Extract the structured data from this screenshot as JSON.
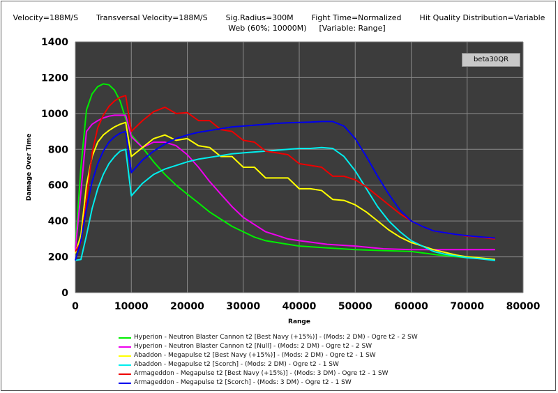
{
  "header": {
    "velocity": "Velocity=188M/S",
    "transversal_velocity": "Transversal Velocity=188M/S",
    "sig_radius": "Sig.Radius=300M",
    "fight_time": "Fight Time=Normalized",
    "hit_quality": "Hit Quality Distribution=Variable",
    "web": "Web (60%; 10000M)",
    "variable": "[Variable: Range]"
  },
  "badge": "beta30QR",
  "colors": {
    "plot_bg": "#3c3c3c",
    "grid": "#8a8a8a"
  },
  "chart_data": {
    "type": "line",
    "title": "",
    "xlabel": "Range",
    "ylabel": "Damage Over Time",
    "xlim": [
      0,
      80000
    ],
    "ylim": [
      0,
      1400
    ],
    "x_ticks": [
      "0",
      "10000",
      "20000",
      "30000",
      "40000",
      "50000",
      "60000",
      "70000",
      "80000"
    ],
    "y_ticks": [
      "0",
      "200",
      "400",
      "600",
      "800",
      "1000",
      "1200",
      "1400"
    ],
    "grid": true,
    "legend_position": "bottom",
    "series": [
      {
        "name": "Hyperion - Neutron Blaster Cannon t2 [Best Navy (+15%)] - (Mods: 2 DM) - Ogre t2 - 2 SW",
        "color": "#00ee00",
        "points": [
          [
            0,
            250
          ],
          [
            1000,
            700
          ],
          [
            2000,
            1020
          ],
          [
            3000,
            1110
          ],
          [
            4000,
            1150
          ],
          [
            5000,
            1165
          ],
          [
            6000,
            1160
          ],
          [
            7000,
            1130
          ],
          [
            8000,
            1070
          ],
          [
            9000,
            970
          ],
          [
            10000,
            880
          ],
          [
            12000,
            810
          ],
          [
            14000,
            730
          ],
          [
            16000,
            660
          ],
          [
            18000,
            600
          ],
          [
            20000,
            550
          ],
          [
            22000,
            500
          ],
          [
            24000,
            450
          ],
          [
            26000,
            410
          ],
          [
            28000,
            370
          ],
          [
            30000,
            340
          ],
          [
            32000,
            310
          ],
          [
            34000,
            290
          ],
          [
            36000,
            280
          ],
          [
            38000,
            270
          ],
          [
            40000,
            260
          ],
          [
            45000,
            250
          ],
          [
            50000,
            240
          ],
          [
            55000,
            235
          ],
          [
            60000,
            230
          ],
          [
            65000,
            210
          ],
          [
            70000,
            195
          ],
          [
            75000,
            185
          ]
        ]
      },
      {
        "name": "Hyperion - Neutron Blaster Cannon t2 [Null] - (Mods: 2 DM) - Ogre t2 - 2 SW",
        "color": "#ee00ee",
        "points": [
          [
            0,
            240
          ],
          [
            1000,
            560
          ],
          [
            2000,
            900
          ],
          [
            3000,
            940
          ],
          [
            4000,
            960
          ],
          [
            5000,
            975
          ],
          [
            6000,
            985
          ],
          [
            7000,
            990
          ],
          [
            8000,
            990
          ],
          [
            9000,
            990
          ],
          [
            10000,
            870
          ],
          [
            12000,
            810
          ],
          [
            14000,
            840
          ],
          [
            16000,
            840
          ],
          [
            18000,
            820
          ],
          [
            20000,
            770
          ],
          [
            22000,
            700
          ],
          [
            24000,
            620
          ],
          [
            26000,
            550
          ],
          [
            28000,
            480
          ],
          [
            30000,
            420
          ],
          [
            32000,
            380
          ],
          [
            34000,
            340
          ],
          [
            36000,
            320
          ],
          [
            38000,
            300
          ],
          [
            40000,
            290
          ],
          [
            45000,
            270
          ],
          [
            50000,
            260
          ],
          [
            55000,
            245
          ],
          [
            60000,
            240
          ],
          [
            65000,
            240
          ],
          [
            70000,
            240
          ],
          [
            75000,
            240
          ]
        ]
      },
      {
        "name": "Abaddon - Megapulse t2 [Best Navy (+15%)] - (Mods: 2 DM) - Ogre t2 - 1 SW",
        "color": "#ffff00",
        "points": [
          [
            0,
            220
          ],
          [
            1000,
            320
          ],
          [
            2000,
            600
          ],
          [
            3000,
            760
          ],
          [
            4000,
            840
          ],
          [
            5000,
            880
          ],
          [
            6000,
            905
          ],
          [
            7000,
            925
          ],
          [
            8000,
            940
          ],
          [
            9000,
            950
          ],
          [
            10000,
            760
          ],
          [
            12000,
            810
          ],
          [
            14000,
            860
          ],
          [
            16000,
            880
          ],
          [
            18000,
            850
          ],
          [
            20000,
            860
          ],
          [
            22000,
            820
          ],
          [
            24000,
            810
          ],
          [
            26000,
            760
          ],
          [
            28000,
            760
          ],
          [
            30000,
            700
          ],
          [
            32000,
            700
          ],
          [
            34000,
            640
          ],
          [
            36000,
            640
          ],
          [
            38000,
            640
          ],
          [
            40000,
            580
          ],
          [
            42000,
            580
          ],
          [
            44000,
            570
          ],
          [
            46000,
            520
          ],
          [
            48000,
            515
          ],
          [
            50000,
            490
          ],
          [
            52000,
            450
          ],
          [
            54000,
            400
          ],
          [
            56000,
            350
          ],
          [
            58000,
            310
          ],
          [
            60000,
            280
          ],
          [
            62000,
            260
          ],
          [
            64000,
            240
          ],
          [
            66000,
            225
          ],
          [
            68000,
            210
          ],
          [
            70000,
            200
          ],
          [
            72000,
            195
          ],
          [
            75000,
            185
          ]
        ]
      },
      {
        "name": "Abaddon - Megapulse t2 [Scorch] - (Mods: 2 DM) - Ogre t2 - 1 SW",
        "color": "#00eeee",
        "points": [
          [
            0,
            180
          ],
          [
            1000,
            185
          ],
          [
            2000,
            320
          ],
          [
            3000,
            470
          ],
          [
            4000,
            580
          ],
          [
            5000,
            660
          ],
          [
            6000,
            720
          ],
          [
            7000,
            760
          ],
          [
            8000,
            790
          ],
          [
            9000,
            800
          ],
          [
            10000,
            540
          ],
          [
            12000,
            610
          ],
          [
            14000,
            660
          ],
          [
            16000,
            690
          ],
          [
            18000,
            710
          ],
          [
            20000,
            730
          ],
          [
            22000,
            745
          ],
          [
            24000,
            755
          ],
          [
            26000,
            765
          ],
          [
            28000,
            775
          ],
          [
            30000,
            780
          ],
          [
            32000,
            785
          ],
          [
            34000,
            790
          ],
          [
            36000,
            795
          ],
          [
            38000,
            800
          ],
          [
            40000,
            805
          ],
          [
            42000,
            805
          ],
          [
            44000,
            810
          ],
          [
            46000,
            805
          ],
          [
            48000,
            760
          ],
          [
            50000,
            680
          ],
          [
            52000,
            580
          ],
          [
            54000,
            480
          ],
          [
            56000,
            400
          ],
          [
            58000,
            340
          ],
          [
            60000,
            290
          ],
          [
            62000,
            260
          ],
          [
            64000,
            230
          ],
          [
            66000,
            215
          ],
          [
            68000,
            205
          ],
          [
            70000,
            195
          ],
          [
            72000,
            190
          ],
          [
            75000,
            180
          ]
        ]
      },
      {
        "name": "Armageddon - Megapulse t2 [Best Navy (+15%)] - (Mods: 3 DM) - Ogre t2 - 1 SW",
        "color": "#ee0000",
        "points": [
          [
            0,
            230
          ],
          [
            1000,
            280
          ],
          [
            2000,
            520
          ],
          [
            3000,
            780
          ],
          [
            4000,
            920
          ],
          [
            5000,
            990
          ],
          [
            6000,
            1040
          ],
          [
            7000,
            1070
          ],
          [
            8000,
            1090
          ],
          [
            9000,
            1100
          ],
          [
            10000,
            900
          ],
          [
            12000,
            960
          ],
          [
            14000,
            1010
          ],
          [
            16000,
            1035
          ],
          [
            18000,
            1000
          ],
          [
            20000,
            1005
          ],
          [
            22000,
            960
          ],
          [
            24000,
            960
          ],
          [
            26000,
            910
          ],
          [
            28000,
            900
          ],
          [
            30000,
            850
          ],
          [
            32000,
            840
          ],
          [
            34000,
            790
          ],
          [
            36000,
            780
          ],
          [
            38000,
            770
          ],
          [
            40000,
            720
          ],
          [
            42000,
            710
          ],
          [
            44000,
            700
          ],
          [
            46000,
            650
          ],
          [
            48000,
            650
          ],
          [
            50000,
            630
          ],
          [
            52000,
            590
          ],
          [
            54000,
            540
          ],
          [
            56000,
            490
          ],
          [
            58000,
            440
          ],
          [
            60000,
            400
          ],
          [
            62000,
            370
          ],
          [
            64000,
            345
          ],
          [
            66000,
            335
          ],
          [
            68000,
            325
          ],
          [
            70000,
            315
          ],
          [
            72000,
            310
          ],
          [
            75000,
            300
          ]
        ]
      },
      {
        "name": "Armageddon - Megapulse t2 [Scorch] - (Mods: 3 DM) - Ogre t2 - 1 SW",
        "color": "#0000ee",
        "points": [
          [
            0,
            180
          ],
          [
            1000,
            290
          ],
          [
            2000,
            470
          ],
          [
            3000,
            620
          ],
          [
            4000,
            720
          ],
          [
            5000,
            790
          ],
          [
            6000,
            840
          ],
          [
            7000,
            870
          ],
          [
            8000,
            890
          ],
          [
            9000,
            900
          ],
          [
            10000,
            670
          ],
          [
            12000,
            740
          ],
          [
            14000,
            790
          ],
          [
            16000,
            830
          ],
          [
            18000,
            860
          ],
          [
            20000,
            880
          ],
          [
            22000,
            895
          ],
          [
            24000,
            905
          ],
          [
            26000,
            915
          ],
          [
            28000,
            925
          ],
          [
            30000,
            930
          ],
          [
            32000,
            935
          ],
          [
            34000,
            940
          ],
          [
            36000,
            945
          ],
          [
            38000,
            948
          ],
          [
            40000,
            950
          ],
          [
            42000,
            952
          ],
          [
            44000,
            955
          ],
          [
            46000,
            955
          ],
          [
            48000,
            930
          ],
          [
            50000,
            860
          ],
          [
            52000,
            760
          ],
          [
            54000,
            650
          ],
          [
            56000,
            550
          ],
          [
            58000,
            460
          ],
          [
            60000,
            400
          ],
          [
            62000,
            370
          ],
          [
            64000,
            345
          ],
          [
            66000,
            335
          ],
          [
            68000,
            325
          ],
          [
            70000,
            318
          ],
          [
            72000,
            312
          ],
          [
            75000,
            305
          ]
        ]
      }
    ]
  }
}
